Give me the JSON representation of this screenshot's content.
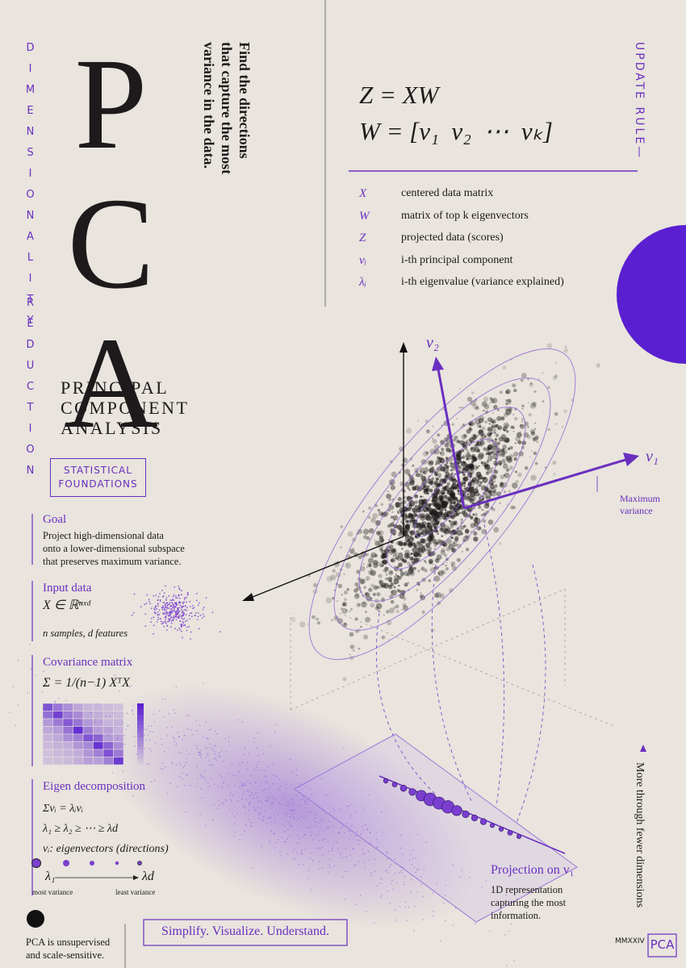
{
  "side_label": [
    "DIMENSIONALITY",
    "REDUCTION"
  ],
  "title": "PCA",
  "subtitle_lines": [
    "PRINCIPAL",
    "COMPONENT",
    "ANALYSIS"
  ],
  "tagline_lines": [
    "Find the directions",
    "that capture the most",
    "variance in the data."
  ],
  "update_rule": "UPDATE RULE—",
  "equations": [
    "Z = XW",
    "W = [v₁  v₂  ⋯  vₖ]"
  ],
  "symbols": [
    {
      "symbol": "X",
      "meaning": "centered data matrix"
    },
    {
      "symbol": "W",
      "meaning": "matrix of top k eigenvectors"
    },
    {
      "symbol": "Z",
      "meaning": "projected data (scores)"
    },
    {
      "symbol": "vᵢ",
      "meaning": "i-th principal component"
    },
    {
      "symbol": "λᵢ",
      "meaning": "i-th eigenvalue (variance explained)"
    }
  ],
  "plot": {
    "v2_label": "v₂",
    "v1_label": "v₁",
    "v1_note": "Maximum variance"
  },
  "foundations": {
    "badge": "STATISTICAL FOUNDATIONS",
    "goal": {
      "heading": "Goal",
      "lines": [
        "Project high-dimensional data",
        "onto a lower-dimensional subspace",
        "that preserves maximum variance."
      ]
    },
    "input": {
      "heading": "Input data",
      "formula": "X ∈ ℝⁿˣᵈ",
      "note": "n samples, d features"
    },
    "covariance": {
      "heading": "Covariance matrix",
      "formula": "Σ = 1/(n−1) XᵀX"
    },
    "eigen": {
      "heading": "Eigen decomposition",
      "lines": [
        "Σvᵢ = λᵢvᵢ",
        "λ₁ ≥ λ₂ ≥ ⋯ ≥ λd",
        "vᵢ: eigenvectors (directions)"
      ],
      "start": "λ₁",
      "end": "λd",
      "start_note": "most variance",
      "end_note": "least variance"
    }
  },
  "footnote": "PCA is unsupervised and scale-sensitive.",
  "motto": "Simplify. Visualize. Understand.",
  "projection": {
    "heading": "Projection on v₁",
    "text": "1D representation capturing the most information."
  },
  "side_note": "More through fewer dimensions",
  "year": "MMXXIV",
  "mark": "PCA"
}
